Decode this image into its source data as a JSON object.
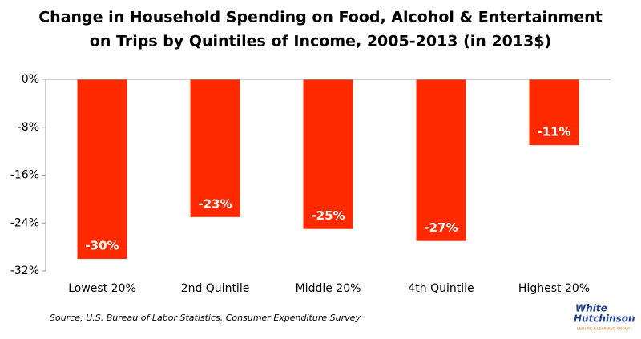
{
  "chart_data": {
    "type": "bar",
    "title": [
      "Change in Household Spending on Food, Alcohol & Entertainment",
      "on Trips by Quintiles of Income, 2005-2013 (in 2013$)"
    ],
    "categories": [
      "Lowest 20%",
      "2nd Quintile",
      "Middle 20%",
      "4th Quintile",
      "Highest 20%"
    ],
    "values": [
      -30,
      -23,
      -25,
      -27,
      -11
    ],
    "value_labels": [
      "-30%",
      "-23%",
      "-25%",
      "-27%",
      "-11%"
    ],
    "color": "#ff2a00",
    "ylim": [
      -32,
      0
    ],
    "yticks": [
      {
        "value": 0,
        "label": "0%"
      },
      {
        "value": -8,
        "label": "-8%"
      },
      {
        "value": -16,
        "label": "-16%"
      },
      {
        "value": -24,
        "label": "-24%"
      },
      {
        "value": -32,
        "label": "-32%"
      }
    ],
    "source": "Source; U.S. Bureau of Labor Statistics, Consumer Expenditure Survey",
    "logo": {
      "line1": "White",
      "line2": "Hutchinson",
      "tagline": "LEISURE & LEARNING GROUP"
    }
  }
}
